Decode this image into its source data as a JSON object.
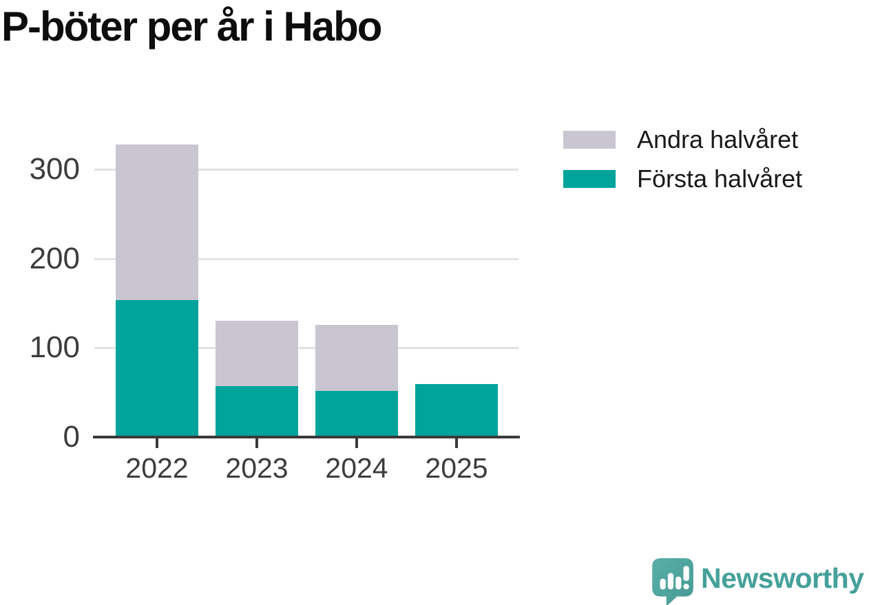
{
  "title": "P-böter per år i Habo",
  "legend": {
    "items": [
      {
        "id": "andra-halvaret",
        "label": "Andra halvåret",
        "color": "#C9C6D1"
      },
      {
        "id": "forsta-halvaret",
        "label": "Första halvåret",
        "color": "#00A49B"
      }
    ]
  },
  "chart_data": {
    "type": "bar",
    "stacked": true,
    "title": "P-böter per år i Habo",
    "categories": [
      "2022",
      "2023",
      "2024",
      "2025"
    ],
    "series": [
      {
        "id": "forsta-halvaret",
        "name": "Första halvåret",
        "color": "#00A49B",
        "values": [
          154,
          57,
          52,
          59
        ]
      },
      {
        "id": "andra-halvaret",
        "name": "Andra halvåret",
        "color": "#C9C6D1",
        "values": [
          174,
          73,
          74,
          0
        ]
      }
    ],
    "xlabel": "",
    "ylabel": "",
    "ylim": [
      0,
      340
    ],
    "yticks": [
      0,
      100,
      200,
      300
    ],
    "grid": true,
    "gridline_color": "#E2E2E2",
    "axis_color": "#3A3A3A",
    "tick_label_color": "#3C3C3C",
    "legend_position": "right-top"
  },
  "branding": {
    "wordmark": "Newsworthy",
    "logo_icon": "newsworthy-speech-bubble-bar-chart-icon",
    "wordmark_color": "#45A09A",
    "bubble_gradient_start": "#5AAFA9",
    "bubble_gradient_end": "#469993"
  }
}
